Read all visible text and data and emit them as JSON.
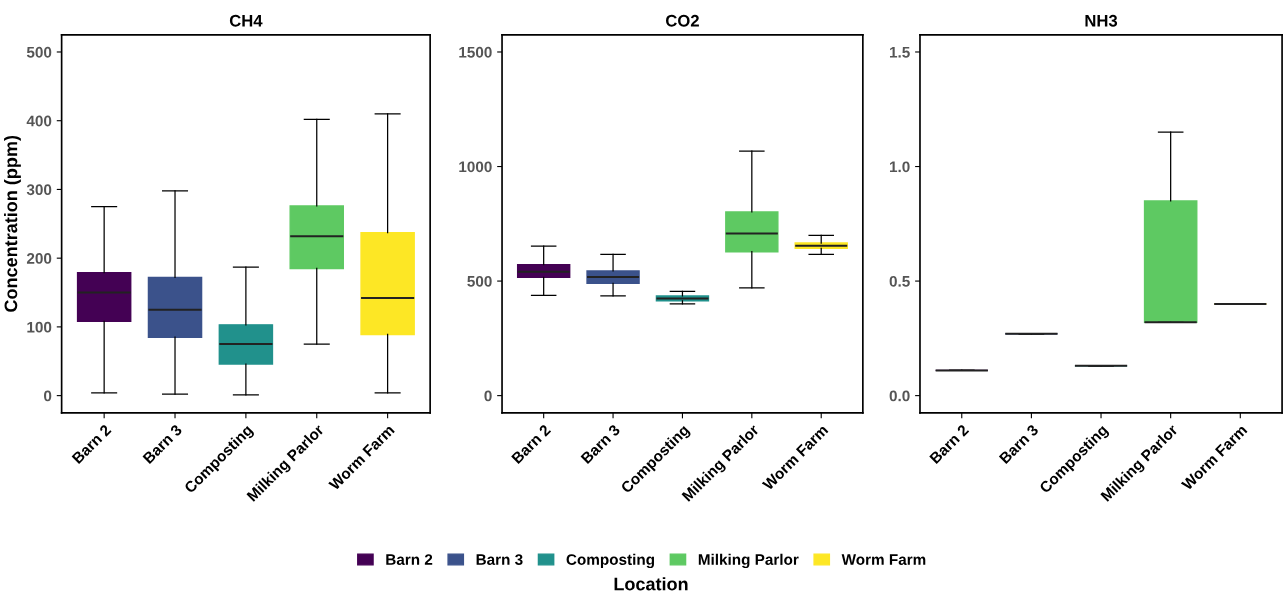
{
  "chart_data": [
    {
      "type": "box",
      "title": "CH4",
      "ylabel": "Concentration (ppm)",
      "grid": false,
      "categories": [
        "Barn 2",
        "Barn 3",
        "Composting",
        "Milking Parlor",
        "Worm Farm"
      ],
      "colors": [
        "#440154",
        "#3b528b",
        "#21918c",
        "#5ec962",
        "#fde725"
      ],
      "ylim": [
        -25,
        525
      ],
      "yticks": [
        0,
        100,
        200,
        300,
        400,
        500
      ],
      "boxes": [
        {
          "low": 4,
          "q1": 108,
          "median": 150,
          "q3": 179,
          "high": 275
        },
        {
          "low": 2,
          "q1": 85,
          "median": 125,
          "q3": 172,
          "high": 298
        },
        {
          "low": 1,
          "q1": 46,
          "median": 75,
          "q3": 103,
          "high": 187
        },
        {
          "low": 75,
          "q1": 185,
          "median": 232,
          "q3": 276,
          "high": 402
        },
        {
          "low": 4,
          "q1": 89,
          "median": 142,
          "q3": 237,
          "high": 410
        }
      ]
    },
    {
      "type": "box",
      "title": "CO2",
      "xlabel": "Location",
      "legend": "bottom",
      "grid": false,
      "categories": [
        "Barn 2",
        "Barn 3",
        "Composting",
        "Milking Parlor",
        "Worm Farm"
      ],
      "ylim": [
        -75,
        1575
      ],
      "yticks": [
        0,
        500,
        1000,
        1500
      ],
      "series": [
        {
          "name": "Barn 2",
          "color": "#440154",
          "boxes": [
            {
              "low": 438,
              "q1": 516,
              "median": 541,
              "q3": 572,
              "high": 653
            },
            null,
            null,
            null,
            null
          ]
        },
        {
          "name": "Barn 3",
          "color": "#3b528b",
          "boxes": [
            null,
            {
              "low": 435,
              "q1": 490,
              "median": 518,
              "q3": 544,
              "high": 616
            },
            null,
            null,
            null
          ]
        },
        {
          "name": "Composting",
          "color": "#21918c",
          "boxes": [
            null,
            null,
            {
              "low": 400,
              "q1": 414,
              "median": 424,
              "q3": 435,
              "high": 455
            },
            null,
            null
          ]
        },
        {
          "name": "Milking Parlor",
          "color": "#5ec962",
          "boxes": [
            null,
            null,
            null,
            {
              "low": 470,
              "q1": 628,
              "median": 708,
              "q3": 802,
              "high": 1067
            },
            null
          ]
        },
        {
          "name": "Worm Farm",
          "color": "#fde725",
          "boxes": [
            null,
            null,
            null,
            null,
            {
              "low": 616,
              "q1": 643,
              "median": 654,
              "q3": 666,
              "high": 699
            }
          ]
        }
      ]
    },
    {
      "type": "box",
      "title": "NH3",
      "grid": false,
      "categories": [
        "Barn 2",
        "Barn 3",
        "Composting",
        "Milking Parlor",
        "Worm Farm"
      ],
      "colors": [
        "#440154",
        "#3b528b",
        "#21918c",
        "#5ec962",
        "#fde725"
      ],
      "ylim": [
        -0.075,
        1.575
      ],
      "yticks": [
        {
          "value": 0,
          "label": "0.0"
        },
        0.5,
        {
          "value": 1,
          "label": "1.0"
        },
        1.5
      ],
      "boxes": [
        {
          "low": 0.11,
          "q1": 0.11,
          "median": 0.11,
          "q3": 0.11,
          "high": 0.11
        },
        {
          "low": 0.27,
          "q1": 0.27,
          "median": 0.27,
          "q3": 0.27,
          "high": 0.27
        },
        {
          "low": 0.13,
          "q1": 0.13,
          "median": 0.13,
          "q3": 0.13,
          "high": 0.13
        },
        {
          "low": 0.32,
          "q1": 0.32,
          "median": 0.32,
          "q3": 0.85,
          "high": 1.15
        },
        {
          "low": 0.4,
          "q1": 0.4,
          "median": 0.4,
          "q3": 0.4,
          "high": 0.4
        }
      ]
    }
  ]
}
